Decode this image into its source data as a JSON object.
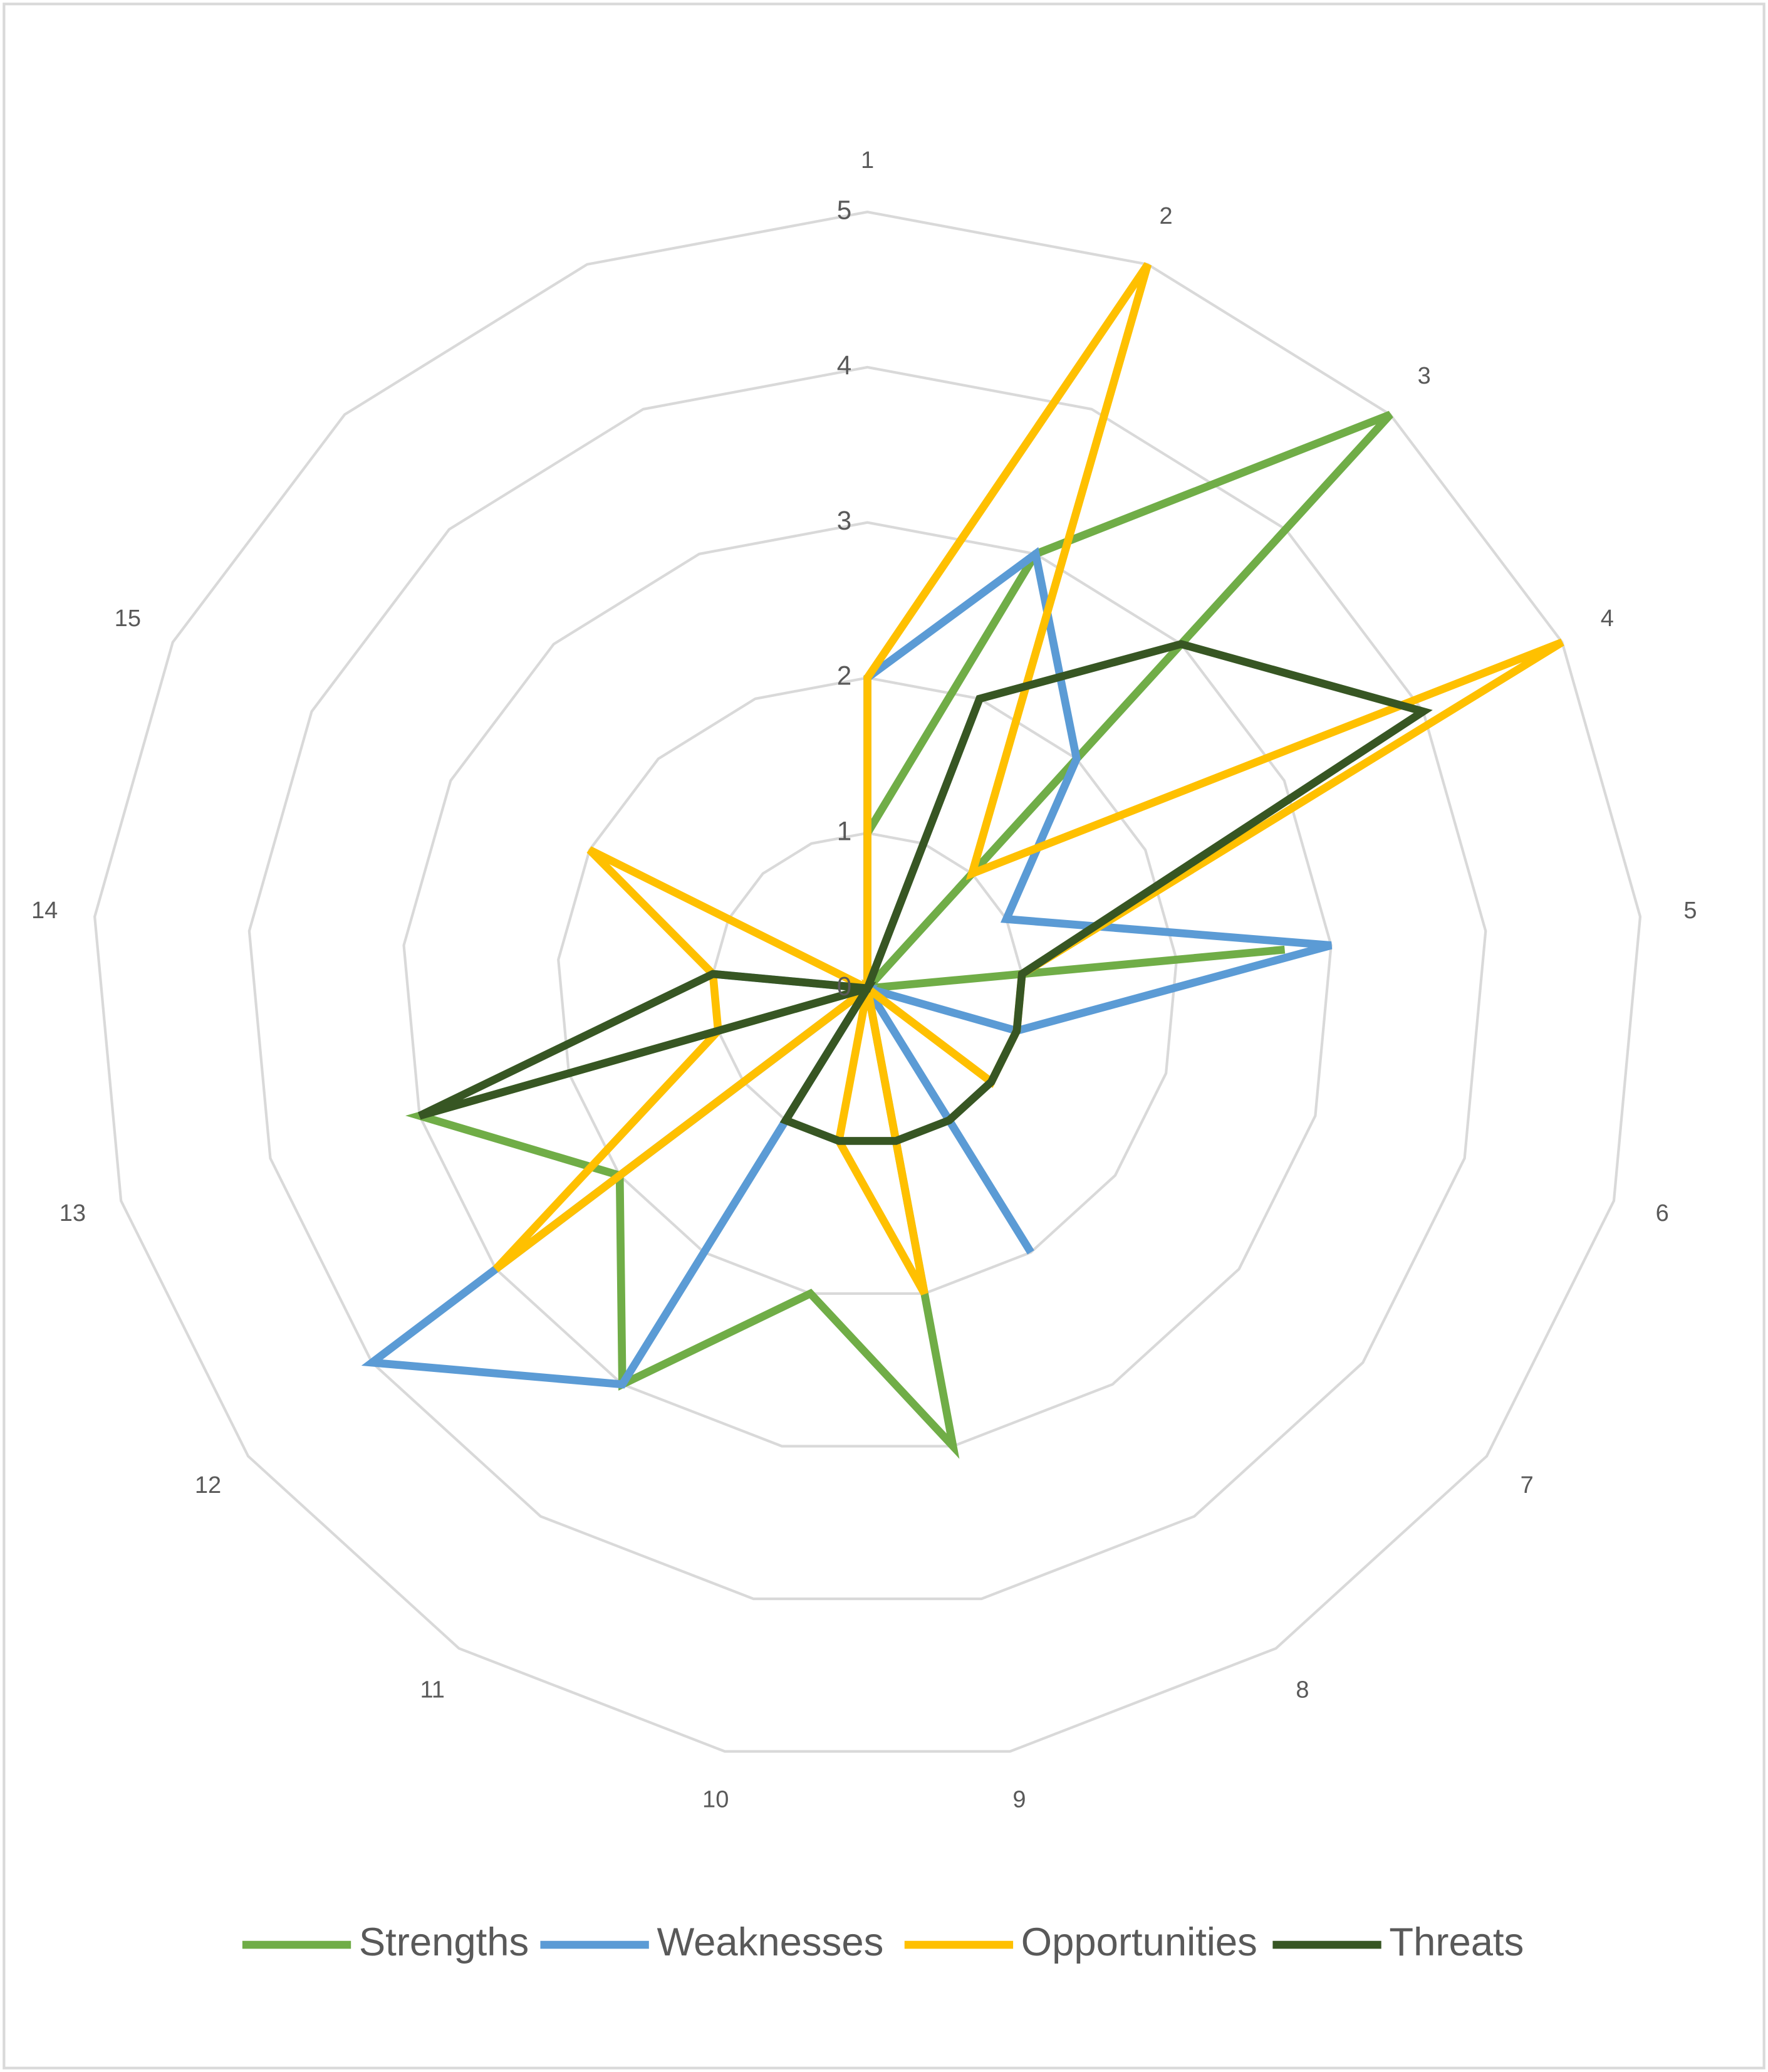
{
  "chart_data": {
    "type": "radar",
    "categories": [
      "1",
      "2",
      "3",
      "4",
      "5",
      "6",
      "7",
      "8",
      "9",
      "10",
      "11",
      "12",
      "13",
      "14",
      "15",
      null,
      null
    ],
    "rlim": [
      0,
      5
    ],
    "rticks": [
      0,
      1,
      2,
      3,
      4,
      5
    ],
    "grid": true,
    "legend": "bottom",
    "series": [
      {
        "name": "Strengths",
        "color": "#70ad47",
        "values": [
          1,
          3,
          5,
          0,
          2.7,
          0,
          0,
          0,
          3,
          2,
          3,
          2,
          3,
          0,
          0,
          0,
          0
        ]
      },
      {
        "name": "Weaknesses",
        "color": "#5b9bd5",
        "values": [
          2,
          3,
          2,
          1,
          3,
          1,
          0,
          2,
          0,
          0,
          3,
          4,
          0,
          1,
          0,
          0,
          0
        ]
      },
      {
        "name": "Opportunities",
        "color": "#ffc000",
        "values": [
          2,
          5,
          1,
          5,
          1,
          1,
          1,
          0,
          2,
          1,
          0,
          3,
          1,
          1,
          2,
          0,
          0
        ]
      },
      {
        "name": "Threats",
        "color": "#375623",
        "values": [
          0,
          2,
          3,
          4,
          1,
          1,
          1,
          1,
          1,
          1,
          1,
          0,
          3,
          1,
          0,
          0,
          0
        ]
      }
    ]
  }
}
